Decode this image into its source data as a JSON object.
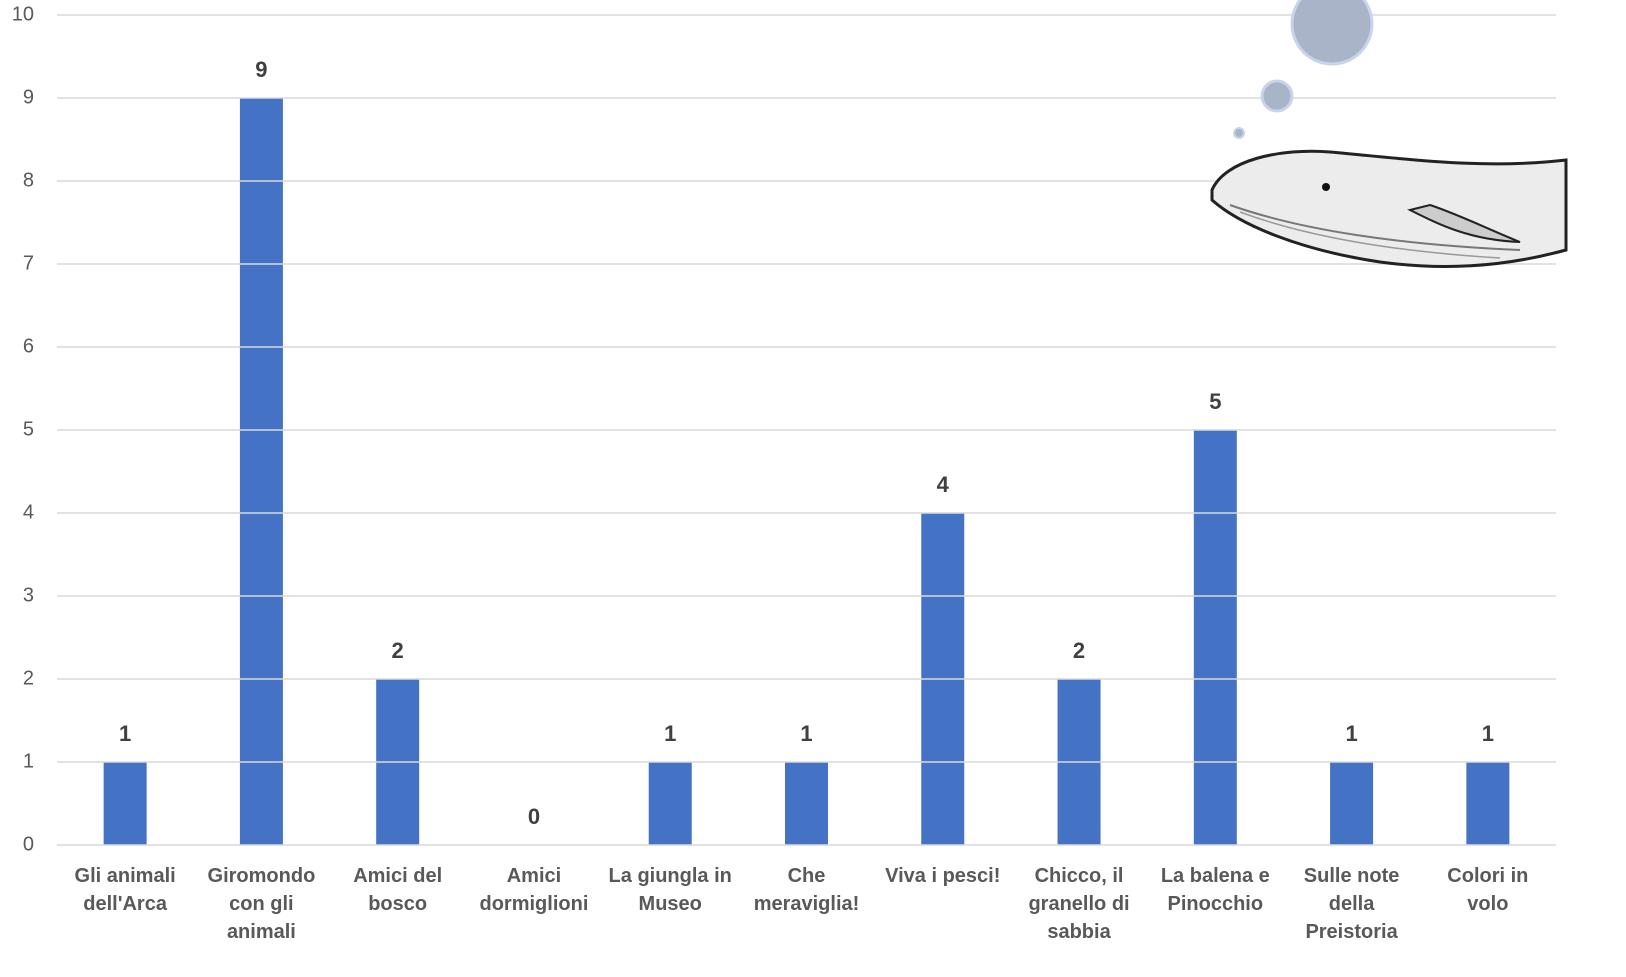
{
  "chart_data": {
    "type": "bar",
    "categories": [
      "Gli animali dell'Arca",
      "Giromondo con gli animali",
      "Amici del bosco",
      "Amici dormiglioni",
      "La giungla in Museo",
      "Che meraviglia!",
      "Viva i pesci!",
      "Chicco, il granello di sabbia",
      "La balena e Pinocchio",
      "Sulle note della Preistoria",
      "Colori in volo"
    ],
    "values": [
      1,
      9,
      2,
      0,
      1,
      1,
      4,
      2,
      5,
      1,
      1
    ],
    "color": "#4472c4",
    "ylim": [
      0,
      10
    ],
    "yticks": [
      0,
      1,
      2,
      3,
      4,
      5,
      6,
      7,
      8,
      9,
      10
    ],
    "grid": true
  }
}
